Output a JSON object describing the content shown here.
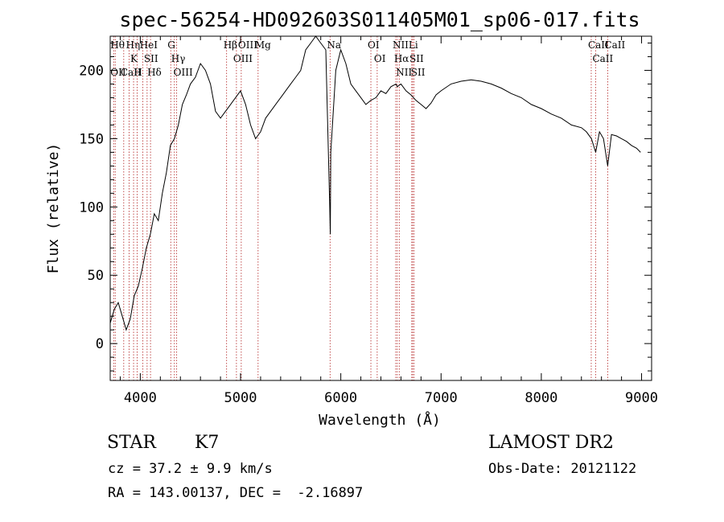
{
  "chart_data": {
    "type": "line",
    "title": "spec-56254-HD092603S011405M01_sp06-017.fits",
    "xlabel": "Wavelength (Å)",
    "ylabel": "Flux (relative)",
    "xlim": [
      3700,
      9100
    ],
    "ylim": [
      -27,
      225
    ],
    "xticks": [
      4000,
      5000,
      6000,
      7000,
      8000,
      9000
    ],
    "yticks": [
      0,
      50,
      100,
      150,
      200
    ],
    "xtick_labels": [
      "4000",
      "5000",
      "6000",
      "7000",
      "8000",
      "9000"
    ],
    "ytick_labels": [
      "0",
      "50",
      "100",
      "150",
      "200"
    ],
    "grid": false,
    "series": [
      {
        "x": [
          3700,
          3740,
          3780,
          3820,
          3860,
          3900,
          3940,
          3980,
          4020,
          4060,
          4100,
          4140,
          4180,
          4220,
          4260,
          4300,
          4340,
          4380,
          4420,
          4460,
          4500,
          4550,
          4600,
          4650,
          4700,
          4750,
          4800,
          4850,
          4900,
          4950,
          5000,
          5050,
          5100,
          5150,
          5200,
          5250,
          5300,
          5350,
          5400,
          5450,
          5500,
          5550,
          5600,
          5650,
          5700,
          5750,
          5800,
          5850,
          5890,
          5895,
          5900,
          5950,
          6000,
          6050,
          6100,
          6150,
          6200,
          6250,
          6300,
          6350,
          6400,
          6450,
          6500,
          6550,
          6563,
          6600,
          6650,
          6700,
          6750,
          6800,
          6850,
          6900,
          6950,
          7000,
          7100,
          7200,
          7300,
          7400,
          7500,
          7600,
          7700,
          7800,
          7900,
          8000,
          8100,
          8200,
          8300,
          8400,
          8450,
          8500,
          8542,
          8580,
          8620,
          8662,
          8700,
          8750,
          8800,
          8850,
          8900,
          8950,
          8990
        ],
        "y": [
          15,
          25,
          30,
          20,
          10,
          18,
          35,
          42,
          55,
          70,
          80,
          95,
          90,
          110,
          125,
          145,
          150,
          160,
          175,
          182,
          190,
          195,
          205,
          200,
          190,
          170,
          165,
          170,
          175,
          180,
          185,
          175,
          160,
          150,
          155,
          165,
          170,
          175,
          180,
          185,
          190,
          195,
          200,
          215,
          220,
          225,
          220,
          215,
          100,
          80,
          140,
          200,
          215,
          205,
          190,
          185,
          180,
          175,
          178,
          180,
          185,
          183,
          188,
          190,
          188,
          190,
          185,
          182,
          178,
          175,
          172,
          176,
          182,
          185,
          190,
          192,
          193,
          192,
          190,
          187,
          183,
          180,
          175,
          172,
          168,
          165,
          160,
          158,
          155,
          150,
          140,
          155,
          150,
          130,
          153,
          152,
          150,
          148,
          145,
          143,
          140
        ]
      }
    ],
    "line_markers": [
      {
        "w": 3734,
        "labels": [
          "Hθ",
          "OII"
        ]
      },
      {
        "w": 3750,
        "labels": []
      },
      {
        "w": 3835,
        "labels": [
          "CaII"
        ]
      },
      {
        "w": 3889,
        "labels": [
          "Hη"
        ]
      },
      {
        "w": 3933,
        "labels": [
          "K"
        ]
      },
      {
        "w": 3968,
        "labels": [
          "H"
        ]
      },
      {
        "w": 4026,
        "labels": [
          "HeI"
        ]
      },
      {
        "w": 4068,
        "labels": [
          "SII"
        ]
      },
      {
        "w": 4102,
        "labels": [
          "Hδ"
        ]
      },
      {
        "w": 4304,
        "labels": [
          "G"
        ]
      },
      {
        "w": 4340,
        "labels": [
          "Hγ"
        ]
      },
      {
        "w": 4363,
        "labels": [
          "OIII"
        ]
      },
      {
        "w": 4861,
        "labels": [
          "Hβ"
        ]
      },
      {
        "w": 4959,
        "labels": [
          "OIII"
        ]
      },
      {
        "w": 5007,
        "labels": [
          "OIII"
        ]
      },
      {
        "w": 5175,
        "labels": [
          "Mg"
        ]
      },
      {
        "w": 5893,
        "labels": [
          "Na"
        ]
      },
      {
        "w": 6300,
        "labels": [
          "OI"
        ]
      },
      {
        "w": 6363,
        "labels": [
          "OI"
        ]
      },
      {
        "w": 6548,
        "labels": [
          "NII"
        ]
      },
      {
        "w": 6563,
        "labels": [
          "Hα"
        ]
      },
      {
        "w": 6583,
        "labels": [
          "NII"
        ]
      },
      {
        "w": 6708,
        "labels": [
          "Li"
        ]
      },
      {
        "w": 6717,
        "labels": [
          "SII"
        ]
      },
      {
        "w": 6731,
        "labels": [
          "SII"
        ]
      },
      {
        "w": 8498,
        "labels": [
          "CaII"
        ]
      },
      {
        "w": 8542,
        "labels": [
          "CaII"
        ]
      },
      {
        "w": 8662,
        "labels": [
          "CaII"
        ]
      }
    ]
  },
  "info": {
    "object_class": "STAR",
    "subclass": "K7",
    "survey": "LAMOST DR2",
    "redshift": "cz = 37.2 ± 9.9 km/s",
    "obs_date": "Obs-Date: 20121122",
    "coords": "RA = 143.00137, DEC =  -2.16897"
  }
}
